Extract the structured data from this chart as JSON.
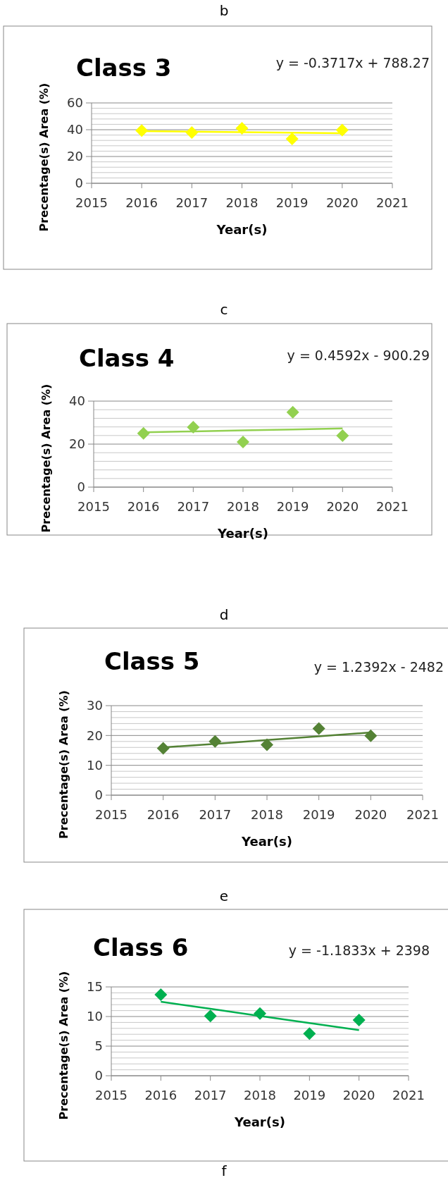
{
  "chart_data": [
    {
      "type": "scatter",
      "title": "Class 3",
      "xlabel": "Year(s)",
      "ylabel": "Precentage(s) Area (%)",
      "annotations": [
        "b",
        "y = -0.3717x + 788.27"
      ],
      "x": [
        2016,
        2017,
        2018,
        2019,
        2020
      ],
      "xlim": [
        2015,
        2021
      ],
      "xticks": [
        2015,
        2016,
        2017,
        2018,
        2019,
        2020,
        2021
      ],
      "ylim": [
        0,
        60
      ],
      "yticks": [
        0,
        20,
        40,
        60
      ],
      "grid": "y",
      "series": [
        {
          "type": "scatter",
          "color": "#ffff00",
          "marker": "diamond",
          "values": [
            39.4,
            37.9,
            41.1,
            33.1,
            39.8
          ]
        },
        {
          "type": "line",
          "color": "#ffff00",
          "values": [
            38.9,
            38.6,
            38.2,
            37.8,
            37.4
          ]
        }
      ]
    },
    {
      "type": "scatter",
      "title": "Class 4",
      "xlabel": "Year(s)",
      "ylabel": "Precentage(s) Area (%)",
      "annotations": [
        "c",
        "y = 0.4592x - 900.29"
      ],
      "x": [
        2016,
        2017,
        2018,
        2019,
        2020
      ],
      "xlim": [
        2015,
        2021
      ],
      "xticks": [
        2015,
        2016,
        2017,
        2018,
        2019,
        2020,
        2021
      ],
      "ylim": [
        0,
        40
      ],
      "yticks": [
        0,
        20,
        40
      ],
      "grid": "y",
      "series": [
        {
          "type": "scatter",
          "color": "#92d050",
          "marker": "diamond",
          "values": [
            25.0,
            27.9,
            21.0,
            34.8,
            23.9
          ]
        },
        {
          "type": "line",
          "color": "#92d050",
          "values": [
            25.5,
            25.9,
            26.4,
            26.8,
            27.3
          ]
        }
      ]
    },
    {
      "type": "scatter",
      "title": "Class 5",
      "xlabel": "Year(s)",
      "ylabel": "Precentage(s) Area (%)",
      "annotations": [
        "d",
        "y = 1.2392x - 2482"
      ],
      "x": [
        2016,
        2017,
        2018,
        2019,
        2020
      ],
      "xlim": [
        2015,
        2021
      ],
      "xticks": [
        2015,
        2016,
        2017,
        2018,
        2019,
        2020,
        2021
      ],
      "ylim": [
        0,
        30
      ],
      "yticks": [
        0,
        10,
        20,
        30
      ],
      "grid": "y",
      "series": [
        {
          "type": "scatter",
          "color": "#548235",
          "marker": "diamond",
          "values": [
            15.7,
            18.0,
            16.9,
            22.3,
            19.9
          ]
        },
        {
          "type": "line",
          "color": "#548235",
          "values": [
            16.0,
            17.2,
            18.5,
            19.7,
            21.0
          ]
        }
      ]
    },
    {
      "type": "scatter",
      "title": "Class 6",
      "xlabel": "Year(s)",
      "ylabel": "Precentage(s) Area (%)",
      "annotations": [
        "e",
        "y = -1.1833x + 2398",
        "f"
      ],
      "x": [
        2016,
        2017,
        2018,
        2019,
        2020
      ],
      "xlim": [
        2015,
        2021
      ],
      "xticks": [
        2015,
        2016,
        2017,
        2018,
        2019,
        2020,
        2021
      ],
      "ylim": [
        0,
        15
      ],
      "yticks": [
        0,
        5,
        10,
        15
      ],
      "grid": "y",
      "series": [
        {
          "type": "scatter",
          "color": "#00b050",
          "marker": "diamond",
          "values": [
            13.7,
            10.1,
            10.5,
            7.1,
            9.4
          ]
        },
        {
          "type": "line",
          "color": "#00b050",
          "values": [
            12.5,
            11.3,
            10.1,
            8.9,
            7.7
          ]
        }
      ]
    }
  ]
}
